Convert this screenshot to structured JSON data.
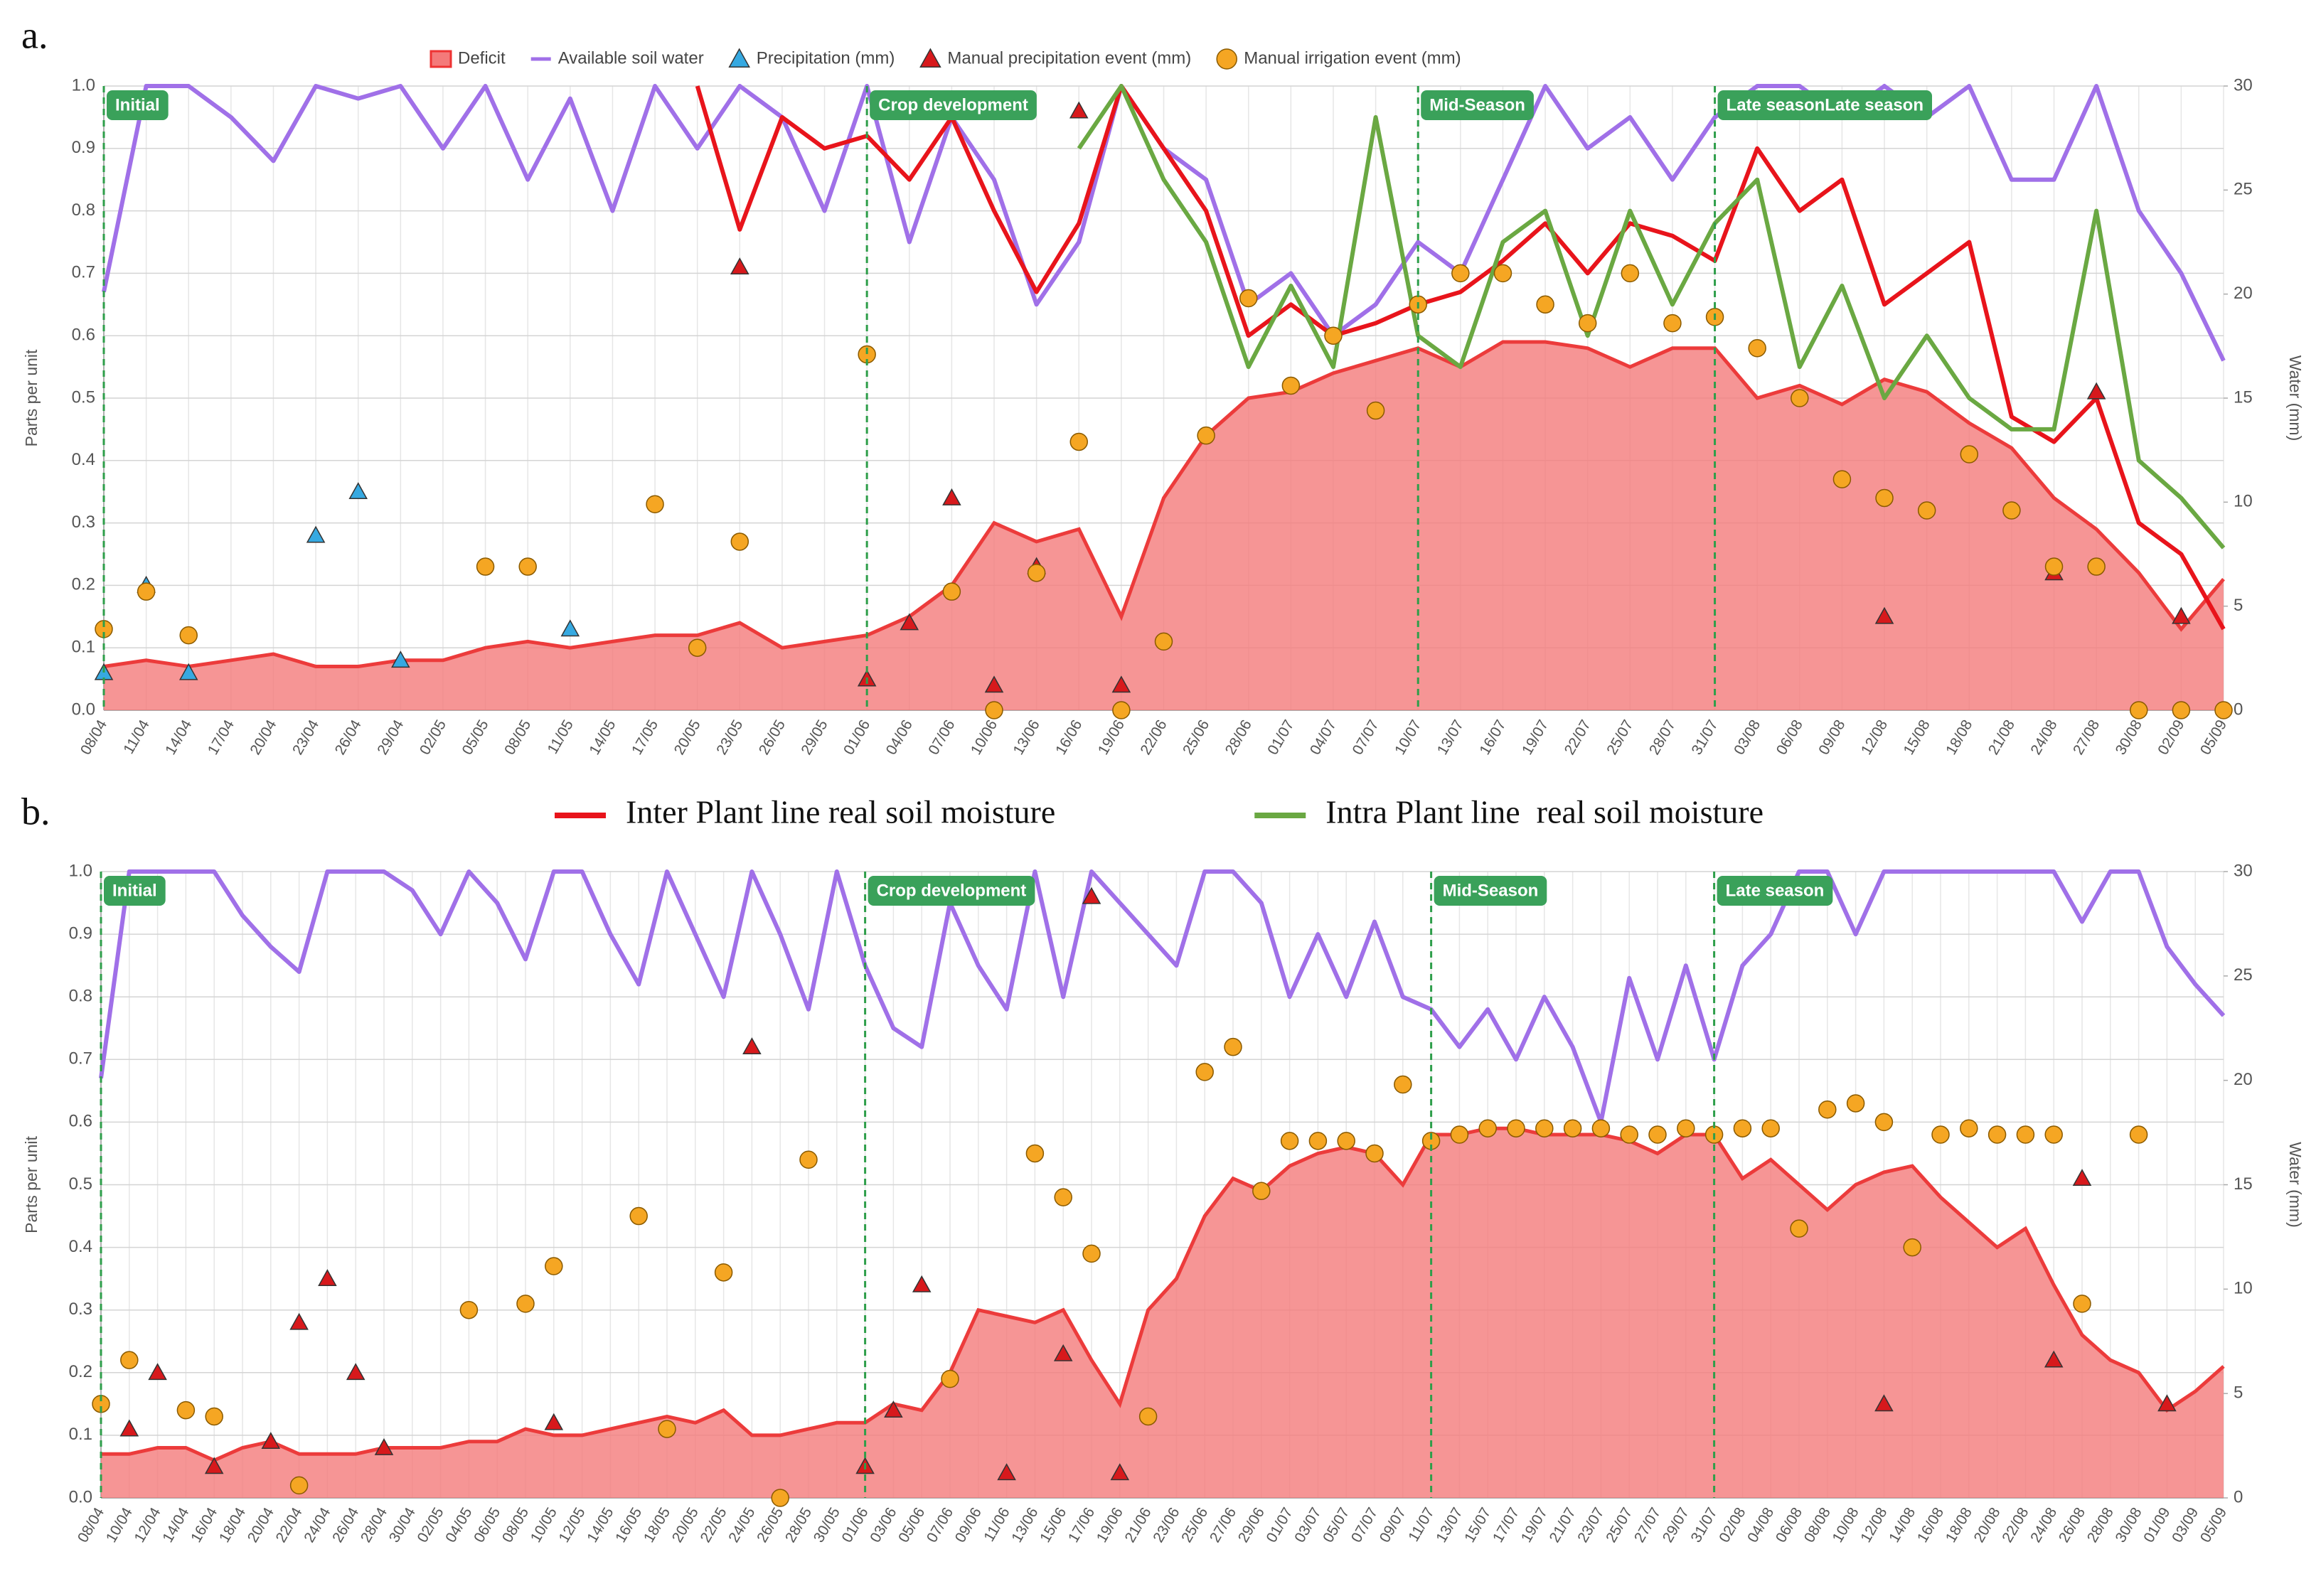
{
  "chart_data": [
    {
      "type": "line",
      "panel": "a.",
      "ylabel": "Parts per unit",
      "y2label": "Water (mm)",
      "grid": true,
      "categories": [
        "08/04",
        "11/04",
        "14/04",
        "17/04",
        "20/04",
        "23/04",
        "26/04",
        "29/04",
        "02/05",
        "05/05",
        "08/05",
        "11/05",
        "14/05",
        "17/05",
        "20/05",
        "23/05",
        "26/05",
        "29/05",
        "01/06",
        "04/06",
        "07/06",
        "10/06",
        "13/06",
        "16/06",
        "19/06",
        "22/06",
        "25/06",
        "28/06",
        "01/07",
        "04/07",
        "07/07",
        "10/07",
        "13/07",
        "16/07",
        "19/07",
        "22/07",
        "25/07",
        "28/07",
        "31/07",
        "03/08",
        "06/08",
        "09/08",
        "12/08",
        "15/08",
        "18/08",
        "21/08",
        "24/08",
        "27/08",
        "30/08",
        "02/09",
        "05/09"
      ],
      "ylim": [
        0,
        1
      ],
      "yticks": [
        {
          "value": 0,
          "label": "0.0"
        },
        0.1,
        0.2,
        0.3,
        0.4,
        0.5,
        0.6,
        0.7,
        0.8,
        0.9,
        {
          "value": 1,
          "label": "1.0"
        }
      ],
      "y2lim": [
        0,
        30
      ],
      "y2ticks": [
        0,
        5,
        10,
        15,
        20,
        25,
        30
      ],
      "annotations": [
        {
          "text": "Initial",
          "at": "08/04"
        },
        {
          "text": "Crop development",
          "at": "01/06"
        },
        {
          "text": "Mid-Season",
          "at": "10/07"
        },
        {
          "text": "Late seasonLate season",
          "at": "31/07"
        }
      ],
      "series": [
        {
          "name": "Deficit",
          "mark": "area",
          "legend": "top",
          "color": "#f47a7a",
          "values": [
            0.07,
            0.08,
            0.07,
            0.08,
            0.09,
            0.07,
            0.07,
            0.08,
            0.08,
            0.1,
            0.11,
            0.1,
            0.11,
            0.12,
            0.12,
            0.14,
            0.1,
            0.11,
            0.12,
            0.15,
            0.2,
            0.3,
            0.27,
            0.29,
            0.15,
            0.34,
            0.44,
            0.5,
            0.51,
            0.54,
            0.56,
            0.58,
            0.55,
            0.59,
            0.59,
            0.58,
            0.55,
            0.58,
            0.58,
            0.5,
            0.52,
            0.49,
            0.53,
            0.51,
            0.46,
            0.42,
            0.34,
            0.29,
            0.22,
            0.13,
            0.21
          ]
        },
        {
          "name": "Available soil water",
          "mark": "line",
          "legend": "top",
          "color": "#a070e8",
          "values": [
            0.67,
            1,
            1,
            0.95,
            0.88,
            1,
            0.98,
            1,
            0.9,
            1,
            0.85,
            0.98,
            0.8,
            1,
            0.9,
            1,
            0.95,
            0.8,
            1,
            0.75,
            0.95,
            0.85,
            0.65,
            0.75,
            1,
            0.9,
            0.85,
            0.65,
            0.7,
            0.6,
            0.65,
            0.75,
            0.7,
            0.85,
            1,
            0.9,
            0.95,
            0.85,
            0.95,
            1,
            1,
            0.95,
            1,
            0.95,
            1,
            0.85,
            0.85,
            1,
            0.8,
            0.7,
            0.56
          ]
        },
        {
          "name": "Inter Plant line real soil moisture",
          "mark": "line",
          "legend": "bottom",
          "color": "#e8141b",
          "values": [
            null,
            null,
            null,
            null,
            null,
            null,
            null,
            null,
            null,
            null,
            null,
            null,
            null,
            null,
            1,
            0.77,
            0.95,
            0.9,
            0.92,
            0.85,
            0.95,
            0.8,
            0.67,
            0.78,
            1,
            0.9,
            0.8,
            0.6,
            0.65,
            0.6,
            0.62,
            0.65,
            0.67,
            0.72,
            0.78,
            0.7,
            0.78,
            0.76,
            0.72,
            0.9,
            0.8,
            0.85,
            0.65,
            0.7,
            0.75,
            0.47,
            0.43,
            0.5,
            0.3,
            0.25,
            0.13
          ]
        },
        {
          "name": "Intra Plant line  real soil moisture",
          "mark": "line",
          "legend": "bottom",
          "color": "#6aa842",
          "values": [
            null,
            null,
            null,
            null,
            null,
            null,
            null,
            null,
            null,
            null,
            null,
            null,
            null,
            null,
            null,
            null,
            null,
            null,
            null,
            null,
            null,
            null,
            null,
            0.9,
            1,
            0.85,
            0.75,
            0.55,
            0.68,
            0.55,
            0.95,
            0.6,
            0.55,
            0.75,
            0.8,
            0.6,
            0.8,
            0.65,
            0.78,
            0.85,
            0.55,
            0.68,
            0.5,
            0.6,
            0.5,
            0.45,
            0.45,
            0.8,
            0.4,
            0.34,
            0.26
          ]
        },
        {
          "name": "Precipitation (mm)",
          "mark": "triangle",
          "legend": "top",
          "color": "#36a9e1",
          "values": [
            0.06,
            0.2,
            0.06,
            null,
            null,
            0.28,
            0.35,
            0.08,
            null,
            null,
            null,
            0.13,
            null,
            null,
            null,
            null,
            null,
            null,
            null,
            null,
            null,
            null,
            null,
            null,
            null,
            null,
            null,
            null,
            null,
            null,
            null,
            null,
            null,
            null,
            null,
            null,
            null,
            null,
            null,
            null,
            null,
            null,
            null,
            null,
            null,
            null,
            null,
            null,
            null,
            null,
            null
          ]
        },
        {
          "name": "Manual precipitation event (mm)",
          "mark": "triangle",
          "legend": "top",
          "color": "#d7191c",
          "values": [
            null,
            null,
            null,
            null,
            null,
            null,
            null,
            null,
            null,
            null,
            null,
            null,
            null,
            null,
            null,
            0.71,
            null,
            null,
            0.05,
            0.14,
            0.34,
            0.04,
            0.23,
            0.96,
            0.04,
            null,
            null,
            null,
            null,
            null,
            null,
            null,
            null,
            null,
            null,
            null,
            null,
            null,
            null,
            null,
            null,
            null,
            0.15,
            null,
            null,
            null,
            0.22,
            0.51,
            null,
            0.15,
            null
          ]
        },
        {
          "name": "Manual irrigation event (mm)",
          "mark": "circle",
          "legend": "top",
          "color": "#f5a623",
          "values": [
            0.13,
            0.19,
            0.12,
            null,
            null,
            null,
            null,
            null,
            null,
            0.23,
            0.23,
            null,
            null,
            0.33,
            0.1,
            0.27,
            null,
            null,
            0.57,
            null,
            0.19,
            0,
            0.22,
            0.43,
            0,
            0.11,
            0.44,
            0.66,
            0.52,
            0.6,
            0.48,
            0.65,
            0.7,
            0.7,
            0.65,
            0.62,
            0.7,
            0.62,
            0.63,
            0.58,
            0.5,
            0.37,
            0.34,
            0.32,
            0.41,
            0.32,
            0.23,
            0.23,
            0,
            0,
            0
          ]
        }
      ]
    },
    {
      "type": "line",
      "panel": "b.",
      "ylabel": "Parts per unit",
      "y2label": "Water (mm)",
      "grid": true,
      "categories": [
        "08/04",
        "10/04",
        "12/04",
        "14/04",
        "16/04",
        "18/04",
        "20/04",
        "22/04",
        "24/04",
        "26/04",
        "28/04",
        "30/04",
        "02/05",
        "04/05",
        "06/05",
        "08/05",
        "10/05",
        "12/05",
        "14/05",
        "16/05",
        "18/05",
        "20/05",
        "22/05",
        "24/05",
        "26/05",
        "28/05",
        "30/05",
        "01/06",
        "03/06",
        "05/06",
        "07/06",
        "09/06",
        "11/06",
        "13/06",
        "15/06",
        "17/06",
        "19/06",
        "21/06",
        "23/06",
        "25/06",
        "27/06",
        "29/06",
        "01/07",
        "03/07",
        "05/07",
        "07/07",
        "09/07",
        "11/07",
        "13/07",
        "15/07",
        "17/07",
        "19/07",
        "21/07",
        "23/07",
        "25/07",
        "27/07",
        "29/07",
        "31/07",
        "02/08",
        "04/08",
        "06/08",
        "08/08",
        "10/08",
        "12/08",
        "14/08",
        "16/08",
        "18/08",
        "20/08",
        "22/08",
        "24/08",
        "26/08",
        "28/08",
        "30/08",
        "01/09",
        "03/09",
        "05/09"
      ],
      "ylim": [
        0,
        1
      ],
      "yticks": [
        {
          "value": 0,
          "label": "0.0"
        },
        0.1,
        0.2,
        0.3,
        0.4,
        0.5,
        0.6,
        0.7,
        0.8,
        0.9,
        {
          "value": 1,
          "label": "1.0"
        }
      ],
      "y2lim": [
        0,
        30
      ],
      "y2ticks": [
        0,
        5,
        10,
        15,
        20,
        25,
        30
      ],
      "annotations": [
        {
          "text": "Initial",
          "at": "08/04"
        },
        {
          "text": "Crop development",
          "at": "01/06"
        },
        {
          "text": "Mid-Season",
          "at": "11/07"
        },
        {
          "text": "Late season",
          "at": "31/07"
        }
      ],
      "series": [
        {
          "mark": "area",
          "color": "#f47a7a",
          "values": [
            0.07,
            0.07,
            0.08,
            0.08,
            0.06,
            0.08,
            0.09,
            0.07,
            0.07,
            0.07,
            0.08,
            0.08,
            0.08,
            0.09,
            0.09,
            0.11,
            0.1,
            0.1,
            0.11,
            0.12,
            0.13,
            0.12,
            0.14,
            0.1,
            0.1,
            0.11,
            0.12,
            0.12,
            0.15,
            0.14,
            0.2,
            0.3,
            0.29,
            0.28,
            0.3,
            0.22,
            0.15,
            0.3,
            0.35,
            0.45,
            0.51,
            0.49,
            0.53,
            0.55,
            0.56,
            0.55,
            0.5,
            0.58,
            0.58,
            0.59,
            0.59,
            0.58,
            0.58,
            0.58,
            0.57,
            0.55,
            0.58,
            0.58,
            0.51,
            0.54,
            0.5,
            0.46,
            0.5,
            0.52,
            0.53,
            0.48,
            0.44,
            0.4,
            0.43,
            0.34,
            0.26,
            0.22,
            0.2,
            0.14,
            0.17,
            0.21
          ]
        },
        {
          "mark": "line",
          "color": "#a070e8",
          "values": [
            0.67,
            1,
            1,
            1,
            1,
            0.93,
            0.88,
            0.84,
            1,
            1,
            1,
            0.97,
            0.9,
            1,
            0.95,
            0.86,
            1,
            1,
            0.9,
            0.82,
            1,
            0.9,
            0.8,
            1,
            0.9,
            0.78,
            1,
            0.85,
            0.75,
            0.72,
            0.95,
            0.85,
            0.78,
            1,
            0.8,
            1,
            0.95,
            0.9,
            0.85,
            1,
            1,
            0.95,
            0.8,
            0.9,
            0.8,
            0.92,
            0.8,
            0.78,
            0.72,
            0.78,
            0.7,
            0.8,
            0.72,
            0.6,
            0.83,
            0.7,
            0.85,
            0.7,
            0.85,
            0.9,
            1,
            1,
            0.9,
            1,
            1,
            1,
            1,
            1,
            1,
            1,
            0.92,
            1,
            1,
            0.88,
            0.82,
            0.77
          ]
        },
        {
          "mark": "triangle",
          "color": "#d7191c",
          "values": [
            null,
            0.11,
            0.2,
            null,
            0.05,
            null,
            0.09,
            0.28,
            0.35,
            0.2,
            0.08,
            null,
            null,
            null,
            null,
            null,
            0.12,
            null,
            null,
            null,
            null,
            null,
            null,
            0.72,
            null,
            null,
            null,
            0.05,
            0.14,
            0.34,
            null,
            null,
            0.04,
            null,
            0.23,
            0.96,
            0.04,
            null,
            null,
            null,
            null,
            null,
            null,
            null,
            null,
            null,
            null,
            null,
            null,
            null,
            null,
            null,
            null,
            null,
            null,
            null,
            null,
            null,
            null,
            null,
            null,
            null,
            null,
            0.15,
            null,
            null,
            null,
            null,
            null,
            0.22,
            0.51,
            null,
            null,
            0.15,
            null,
            null
          ]
        },
        {
          "mark": "circle",
          "color": "#f5a623",
          "values": [
            0.15,
            0.22,
            null,
            0.14,
            0.13,
            null,
            null,
            0.02,
            null,
            null,
            null,
            null,
            null,
            0.3,
            null,
            0.31,
            0.37,
            null,
            null,
            0.45,
            0.11,
            null,
            0.36,
            null,
            0,
            0.54,
            null,
            null,
            null,
            null,
            0.19,
            null,
            null,
            0.55,
            0.48,
            0.39,
            null,
            0.13,
            null,
            0.68,
            0.72,
            0.49,
            0.57,
            0.57,
            0.57,
            0.55,
            0.66,
            0.57,
            0.58,
            0.59,
            0.59,
            0.59,
            0.59,
            0.59,
            0.58,
            0.58,
            0.59,
            0.58,
            0.59,
            0.59,
            0.43,
            0.62,
            0.63,
            0.6,
            0.4,
            0.58,
            0.59,
            0.58,
            0.58,
            0.58,
            0.31,
            null,
            0.58,
            null,
            null,
            null
          ]
        }
      ]
    }
  ]
}
